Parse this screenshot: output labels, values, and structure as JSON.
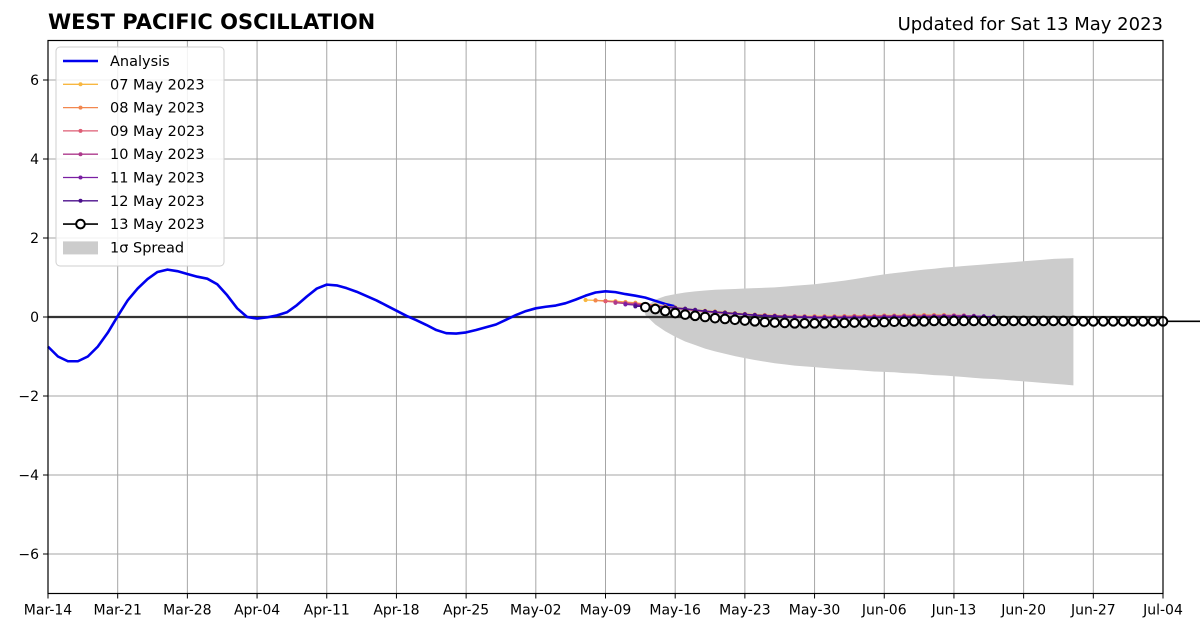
{
  "chart_data": {
    "type": "line",
    "title": "WEST PACIFIC OSCILLATION",
    "subtitle": "Updated for Sat 13 May 2023",
    "xlabel": "",
    "ylabel": "",
    "x_axis": {
      "range": [
        "2023-03-14",
        "2023-07-04"
      ],
      "tick_dates": [
        "2023-03-14",
        "2023-03-21",
        "2023-03-28",
        "2023-04-04",
        "2023-04-11",
        "2023-04-18",
        "2023-04-25",
        "2023-05-02",
        "2023-05-09",
        "2023-05-16",
        "2023-05-23",
        "2023-05-30",
        "2023-06-06",
        "2023-06-13",
        "2023-06-20",
        "2023-06-27",
        "2023-07-04"
      ],
      "tick_labels": [
        "Mar-14",
        "Mar-21",
        "Mar-28",
        "Apr-04",
        "Apr-11",
        "Apr-18",
        "Apr-25",
        "May-02",
        "May-09",
        "May-16",
        "May-23",
        "May-30",
        "Jun-06",
        "Jun-13",
        "Jun-20",
        "Jun-27",
        "Jul-04"
      ]
    },
    "y_axis": {
      "range": [
        -7,
        7
      ],
      "ticks": [
        -6,
        -4,
        -2,
        0,
        2,
        4,
        6
      ],
      "tick_labels": [
        "−6",
        "−4",
        "−2",
        "0",
        "2",
        "4",
        "6"
      ]
    },
    "grid": true,
    "legend_position": "top-left",
    "legend_entries": [
      "Analysis",
      "07 May 2023",
      "08 May 2023",
      "09 May 2023",
      "10 May 2023",
      "11 May 2023",
      "12 May 2023",
      "13 May 2023",
      "1σ Spread"
    ],
    "colors": {
      "analysis": "#0000ee",
      "spread": "#cccccc",
      "13 May 2023": "#000000",
      "12 May 2023": "#4b0f8c",
      "11 May 2023": "#7a1fa2",
      "10 May 2023": "#ad3a8c",
      "09 May 2023": "#de5c74",
      "08 May 2023": "#f2874f",
      "07 May 2023": "#f8b740"
    },
    "analysis": {
      "name": "Analysis",
      "start": "2023-03-14",
      "values": [
        -0.75,
        -1.0,
        -1.12,
        -1.12,
        -1.0,
        -0.75,
        -0.4,
        0.02,
        0.42,
        0.72,
        0.96,
        1.14,
        1.2,
        1.16,
        1.09,
        1.02,
        0.97,
        0.83,
        0.55,
        0.22,
        0.0,
        -0.04,
        -0.01,
        0.04,
        0.12,
        0.3,
        0.52,
        0.72,
        0.82,
        0.8,
        0.73,
        0.64,
        0.53,
        0.42,
        0.29,
        0.16,
        0.03,
        -0.08,
        -0.2,
        -0.33,
        -0.41,
        -0.42,
        -0.39,
        -0.33,
        -0.26,
        -0.19,
        -0.07,
        0.05,
        0.15,
        0.22,
        0.26,
        0.29,
        0.35,
        0.44,
        0.54,
        0.62,
        0.65,
        0.63,
        0.58,
        0.54,
        0.49,
        0.41,
        0.33,
        0.27
      ]
    },
    "spread": {
      "name": "1σ Spread",
      "start": "2023-05-13",
      "upper": [
        0.25,
        0.44,
        0.53,
        0.58,
        0.62,
        0.65,
        0.67,
        0.69,
        0.7,
        0.71,
        0.72,
        0.73,
        0.74,
        0.75,
        0.77,
        0.79,
        0.81,
        0.83,
        0.86,
        0.89,
        0.92,
        0.96,
        1.0,
        1.04,
        1.08,
        1.11,
        1.14,
        1.17,
        1.2,
        1.22,
        1.25,
        1.27,
        1.29,
        1.31,
        1.33,
        1.35,
        1.37,
        1.39,
        1.41,
        1.43,
        1.45,
        1.47,
        1.48,
        1.49
      ],
      "lower": [
        0.05,
        -0.19,
        -0.36,
        -0.5,
        -0.62,
        -0.71,
        -0.8,
        -0.87,
        -0.93,
        -0.99,
        -1.04,
        -1.09,
        -1.13,
        -1.17,
        -1.2,
        -1.23,
        -1.25,
        -1.27,
        -1.29,
        -1.31,
        -1.33,
        -1.34,
        -1.36,
        -1.38,
        -1.39,
        -1.4,
        -1.42,
        -1.43,
        -1.45,
        -1.47,
        -1.48,
        -1.5,
        -1.52,
        -1.54,
        -1.56,
        -1.57,
        -1.59,
        -1.61,
        -1.63,
        -1.65,
        -1.67,
        -1.69,
        -1.71,
        -1.73
      ]
    },
    "forecasts": [
      {
        "name": "07 May 2023",
        "start": "2023-05-07",
        "values": [
          0.43,
          0.42,
          0.41,
          0.4,
          0.38,
          0.36,
          0.33,
          0.3,
          0.27,
          0.24,
          0.21,
          0.18,
          0.16,
          0.14,
          0.12,
          0.1,
          0.08,
          0.06,
          0.05,
          0.04,
          0.03,
          0.02,
          0.02,
          0.02,
          0.02,
          0.02,
          0.02,
          0.03,
          0.03,
          0.03,
          0.04,
          0.04,
          0.04,
          0.04,
          0.05,
          0.05,
          0.05
        ]
      },
      {
        "name": "08 May 2023",
        "start": "2023-05-08",
        "values": [
          0.42,
          0.4,
          0.38,
          0.36,
          0.34,
          0.31,
          0.28,
          0.25,
          0.22,
          0.19,
          0.16,
          0.13,
          0.11,
          0.09,
          0.08,
          0.06,
          0.05,
          0.04,
          0.03,
          0.02,
          0.02,
          0.01,
          0.01,
          0.01,
          0.01,
          0.02,
          0.02,
          0.02,
          0.03,
          0.03,
          0.03,
          0.04,
          0.04,
          0.04,
          0.04,
          0.04,
          0.04
        ]
      },
      {
        "name": "09 May 2023",
        "start": "2023-05-09",
        "values": [
          0.4,
          0.38,
          0.36,
          0.34,
          0.32,
          0.29,
          0.26,
          0.23,
          0.2,
          0.17,
          0.14,
          0.12,
          0.1,
          0.08,
          0.07,
          0.05,
          0.04,
          0.03,
          0.02,
          0.02,
          0.01,
          0.01,
          0.01,
          0.01,
          0.01,
          0.02,
          0.02,
          0.02,
          0.03,
          0.03,
          0.03,
          0.03,
          0.04,
          0.04,
          0.04,
          0.04,
          0.04
        ]
      },
      {
        "name": "10 May 2023",
        "start": "2023-05-10",
        "values": [
          0.36,
          0.34,
          0.32,
          0.3,
          0.28,
          0.25,
          0.22,
          0.2,
          0.17,
          0.14,
          0.12,
          0.1,
          0.08,
          0.06,
          0.05,
          0.04,
          0.03,
          0.02,
          0.01,
          0.01,
          0.0,
          0.0,
          0.0,
          0.0,
          0.01,
          0.01,
          0.01,
          0.02,
          0.02,
          0.02,
          0.02,
          0.02,
          0.03,
          0.03,
          0.03,
          0.03,
          0.03
        ]
      },
      {
        "name": "11 May 2023",
        "start": "2023-05-11",
        "values": [
          0.32,
          0.3,
          0.28,
          0.27,
          0.25,
          0.22,
          0.2,
          0.17,
          0.14,
          0.12,
          0.1,
          0.08,
          0.06,
          0.04,
          0.03,
          0.02,
          0.01,
          0.0,
          0.0,
          -0.01,
          -0.01,
          -0.01,
          -0.01,
          -0.01,
          0.0,
          0.0,
          0.0,
          0.01,
          0.01,
          0.01,
          0.01,
          0.01,
          0.02,
          0.02,
          0.02,
          0.02,
          0.02
        ]
      },
      {
        "name": "12 May 2023",
        "start": "2023-05-12",
        "values": [
          0.27,
          0.27,
          0.26,
          0.25,
          0.23,
          0.21,
          0.18,
          0.15,
          0.13,
          0.11,
          0.09,
          0.07,
          0.05,
          0.03,
          0.02,
          0.01,
          0.0,
          -0.01,
          -0.02,
          -0.02,
          -0.02,
          -0.02,
          -0.02,
          -0.02,
          -0.02,
          -0.01,
          -0.01,
          -0.01,
          0.0,
          0.0,
          0.0,
          0.0,
          0.0,
          0.01,
          0.01,
          0.01,
          0.01
        ]
      },
      {
        "name": "13 May 2023",
        "start": "2023-05-13",
        "values": [
          0.25,
          0.2,
          0.15,
          0.1,
          0.06,
          0.03,
          0.0,
          -0.03,
          -0.05,
          -0.07,
          -0.09,
          -0.11,
          -0.13,
          -0.14,
          -0.15,
          -0.16,
          -0.16,
          -0.16,
          -0.16,
          -0.15,
          -0.15,
          -0.14,
          -0.14,
          -0.13,
          -0.13,
          -0.12,
          -0.12,
          -0.11,
          -0.11,
          -0.1,
          -0.1,
          -0.1,
          -0.1,
          -0.1,
          -0.1,
          -0.1,
          -0.1,
          -0.1,
          -0.1,
          -0.1,
          -0.1,
          -0.1,
          -0.1,
          -0.1,
          -0.11,
          -0.11,
          -0.11,
          -0.11,
          -0.11,
          -0.11,
          -0.11,
          -0.11,
          -0.11,
          -0.11,
          -0.11,
          -0.11,
          -0.11,
          -0.11,
          -0.11,
          -0.11,
          -0.11,
          -0.11,
          -0.11,
          -0.11,
          -0.11,
          -0.11,
          -0.11,
          -0.11,
          -0.11,
          -0.11,
          -0.11,
          -0.11,
          -0.11,
          -0.11,
          -0.11,
          -0.11,
          -0.11,
          -0.11,
          -0.11,
          -0.11,
          -0.11,
          -0.11,
          -0.11,
          -0.11,
          -0.11,
          -0.11,
          -0.11,
          -0.11
        ]
      }
    ]
  }
}
